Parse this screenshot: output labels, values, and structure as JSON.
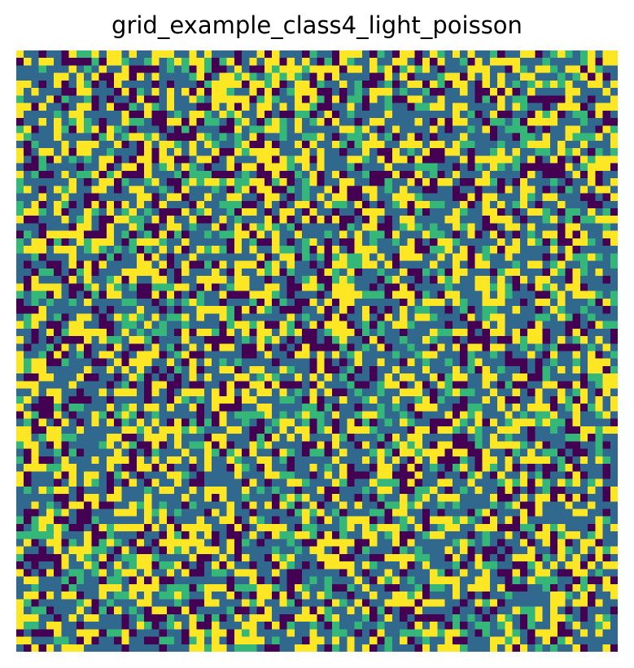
{
  "chart_data": {
    "type": "heatmap",
    "title": "grid_example_class4_light_poisson",
    "rows": 80,
    "cols": 80,
    "classes": [
      0,
      1,
      2,
      3
    ],
    "colors": [
      "#440154",
      "#31688e",
      "#35b779",
      "#fde725"
    ],
    "class_proportions": [
      0.19,
      0.4,
      0.13,
      0.28
    ],
    "values_rng_seed": 4,
    "axes_visible": false,
    "grid": false,
    "legend": "none"
  }
}
